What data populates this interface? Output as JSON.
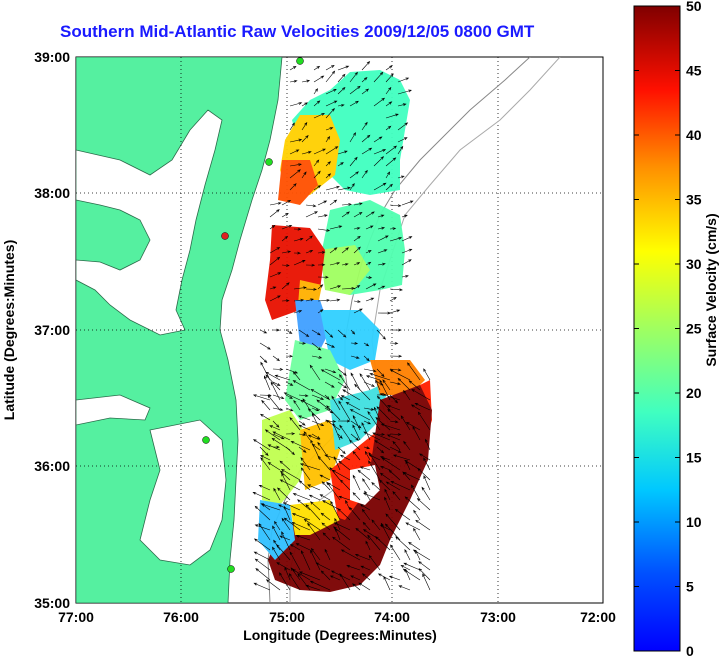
{
  "title": "Southern Mid-Atlantic Raw Velocities 2009/12/05 0800 GMT",
  "axes": {
    "xlabel": "Longitude (Degrees:Minutes)",
    "ylabel": "Latitude (Degrees:Minutes)",
    "x_ticks": [
      "77:00",
      "76:00",
      "75:00",
      "74:00",
      "73:00",
      "72:00"
    ],
    "y_ticks": [
      "39:00",
      "38:00",
      "37:00",
      "36:00",
      "35:00"
    ],
    "x_range": [
      -77,
      -72
    ],
    "y_range": [
      35,
      39
    ]
  },
  "colorbar": {
    "label": "Surface Velocity (cm/s)",
    "ticks": [
      "0",
      "5",
      "10",
      "15",
      "20",
      "25",
      "30",
      "35",
      "40",
      "45",
      "50"
    ],
    "range": [
      0,
      50
    ],
    "colormap": "jet"
  },
  "colors": {
    "land": "#55f0a0",
    "title": "#1a1aff",
    "station_marker": "#22dd22",
    "station_marker_alt": "#dd2222"
  }
}
